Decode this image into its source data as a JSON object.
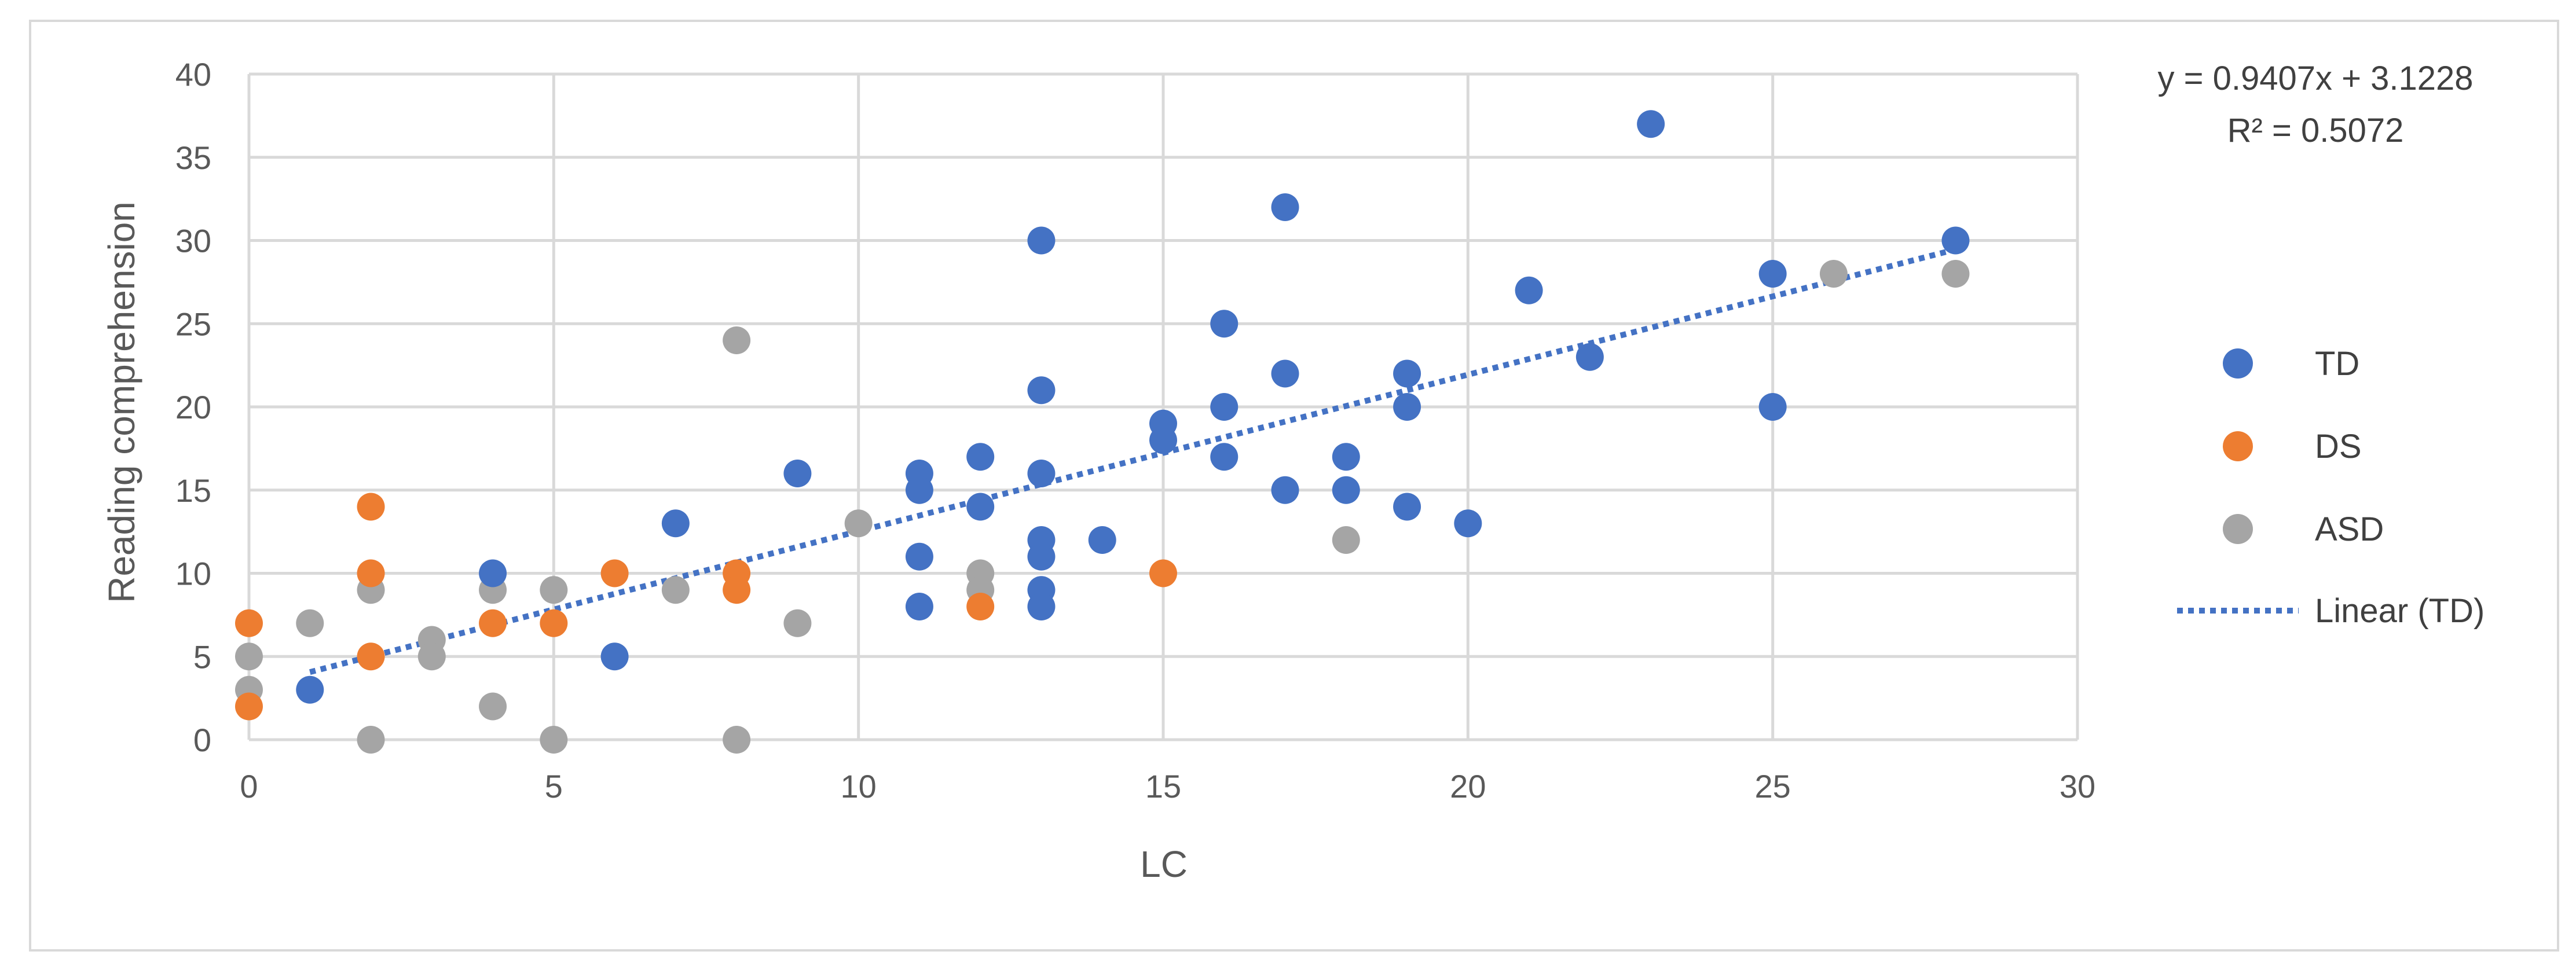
{
  "chart_data": {
    "type": "scatter",
    "title": "",
    "xlabel": "LC",
    "ylabel": "Reading comprehension",
    "xlim": [
      0,
      30
    ],
    "ylim": [
      0,
      40
    ],
    "xticks": [
      "0",
      "5",
      "10",
      "15",
      "20",
      "25",
      "30"
    ],
    "yticks": [
      "0",
      "5",
      "10",
      "15",
      "20",
      "25",
      "30",
      "35",
      "40"
    ],
    "grid": true,
    "legend_position": "right",
    "series": [
      {
        "name": "TD",
        "color": "#4472C4",
        "points": [
          [
            1,
            3
          ],
          [
            4,
            10
          ],
          [
            6,
            5
          ],
          [
            7,
            13
          ],
          [
            9,
            16
          ],
          [
            11,
            16
          ],
          [
            11,
            15
          ],
          [
            11,
            11
          ],
          [
            11,
            8
          ],
          [
            12,
            17
          ],
          [
            12,
            14
          ],
          [
            13,
            30
          ],
          [
            13,
            21
          ],
          [
            13,
            16
          ],
          [
            13,
            12
          ],
          [
            13,
            11
          ],
          [
            13,
            9
          ],
          [
            13,
            8
          ],
          [
            14,
            12
          ],
          [
            15,
            19
          ],
          [
            15,
            18
          ],
          [
            16,
            25
          ],
          [
            16,
            20
          ],
          [
            16,
            17
          ],
          [
            17,
            32
          ],
          [
            17,
            22
          ],
          [
            17,
            15
          ],
          [
            18,
            17
          ],
          [
            18,
            15
          ],
          [
            19,
            22
          ],
          [
            19,
            20
          ],
          [
            19,
            14
          ],
          [
            20,
            13
          ],
          [
            21,
            27
          ],
          [
            22,
            23
          ],
          [
            23,
            37
          ],
          [
            25,
            28
          ],
          [
            25,
            20
          ],
          [
            28,
            30
          ]
        ]
      },
      {
        "name": "DS",
        "color": "#ED7D31",
        "points": [
          [
            0,
            7
          ],
          [
            0,
            2
          ],
          [
            2,
            14
          ],
          [
            2,
            10
          ],
          [
            2,
            5
          ],
          [
            4,
            7
          ],
          [
            5,
            7
          ],
          [
            6,
            10
          ],
          [
            8,
            10
          ],
          [
            8,
            9
          ],
          [
            12,
            8
          ],
          [
            15,
            10
          ]
        ]
      },
      {
        "name": "ASD",
        "color": "#A5A5A5",
        "points": [
          [
            0,
            5
          ],
          [
            0,
            3
          ],
          [
            1,
            7
          ],
          [
            2,
            9
          ],
          [
            2,
            0
          ],
          [
            3,
            6
          ],
          [
            3,
            5
          ],
          [
            4,
            9
          ],
          [
            4,
            2
          ],
          [
            5,
            9
          ],
          [
            5,
            0
          ],
          [
            7,
            9
          ],
          [
            8,
            24
          ],
          [
            8,
            0
          ],
          [
            9,
            7
          ],
          [
            10,
            13
          ],
          [
            12,
            10
          ],
          [
            12,
            9
          ],
          [
            18,
            12
          ],
          [
            26,
            28
          ],
          [
            28,
            28
          ]
        ]
      }
    ],
    "trendline": {
      "name": "Linear (TD)",
      "color": "#4472C4",
      "slope": 0.9407,
      "intercept": 3.1228,
      "x_range": [
        1,
        28
      ],
      "equation": "y = 0.9407x + 3.1228",
      "r_squared": "R² = 0.5072"
    },
    "legend": [
      "TD",
      "DS",
      "ASD",
      "Linear (TD)"
    ]
  }
}
